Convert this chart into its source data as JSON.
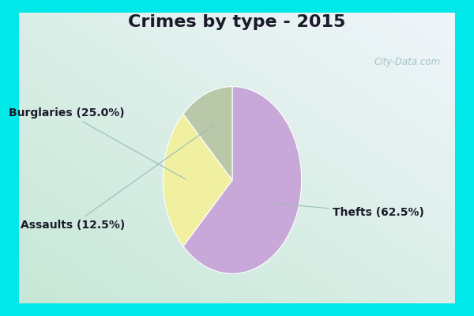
{
  "title": "Crimes by type - 2015",
  "slices": [
    {
      "label": "Thefts",
      "pct": 62.5,
      "color": "#c8a8d8"
    },
    {
      "label": "Burglaries",
      "pct": 25.0,
      "color": "#f0f0a0"
    },
    {
      "label": "Assaults",
      "pct": 12.5,
      "color": "#b8c8a8"
    }
  ],
  "cyan_border": "#00e8e8",
  "bg_color": "#d8ede5",
  "title_fontsize": 16,
  "label_fontsize": 10,
  "watermark": "City-Data.com",
  "title_color": "#1a1a2a",
  "label_color": "#1a1a2a",
  "arrow_color": "#99bbbb",
  "watermark_color": "#99bbbb"
}
